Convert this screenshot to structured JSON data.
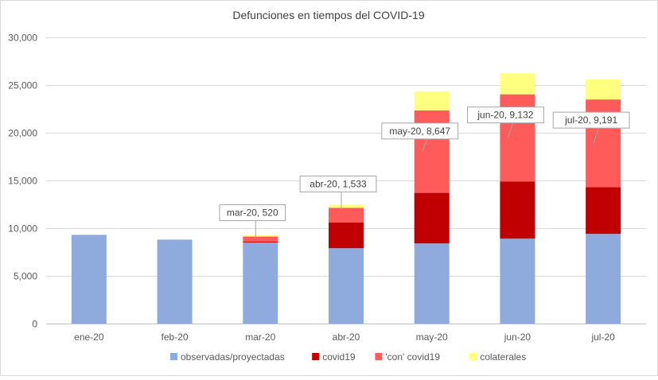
{
  "chart_data": {
    "type": "bar",
    "stacked": true,
    "title": "Defunciones en tiempos del COVID-19",
    "xlabel": "",
    "ylabel": "",
    "ylim": [
      0,
      30000
    ],
    "yticks": [
      0,
      5000,
      10000,
      15000,
      20000,
      25000,
      30000
    ],
    "ytick_labels": [
      "0",
      "5,000",
      "10,000",
      "15,000",
      "20,000",
      "25,000",
      "30,000"
    ],
    "grid": true,
    "legend_position": "bottom",
    "categories": [
      "ene-20",
      "feb-20",
      "mar-20",
      "abr-20",
      "may-20",
      "jun-20",
      "jul-20"
    ],
    "series": [
      {
        "name": "observadas/proyectadas",
        "color": "#8FAADC",
        "values": [
          9300,
          8800,
          8500,
          7900,
          8400,
          8900,
          9400
        ]
      },
      {
        "name": "covid19",
        "color": "#C00000",
        "values": [
          0,
          0,
          100,
          2700,
          5300,
          6000,
          4900
        ]
      },
      {
        "name": "'con' covid19",
        "color": "#FF5B5B",
        "values": [
          0,
          0,
          520,
          1533,
          8647,
          9132,
          9191
        ]
      },
      {
        "name": "colaterales",
        "color": "#FFFF7F",
        "values": [
          0,
          0,
          130,
          330,
          2000,
          2200,
          2100
        ]
      }
    ],
    "annotations": [
      {
        "category": "mar-20",
        "text": "mar-20, 520"
      },
      {
        "category": "abr-20",
        "text": "abr-20, 1,533"
      },
      {
        "category": "may-20",
        "text": "may-20, 8,647"
      },
      {
        "category": "jun-20",
        "text": "jun-20, 9,132"
      },
      {
        "category": "jul-20",
        "text": "jul-20, 9,191"
      }
    ]
  }
}
